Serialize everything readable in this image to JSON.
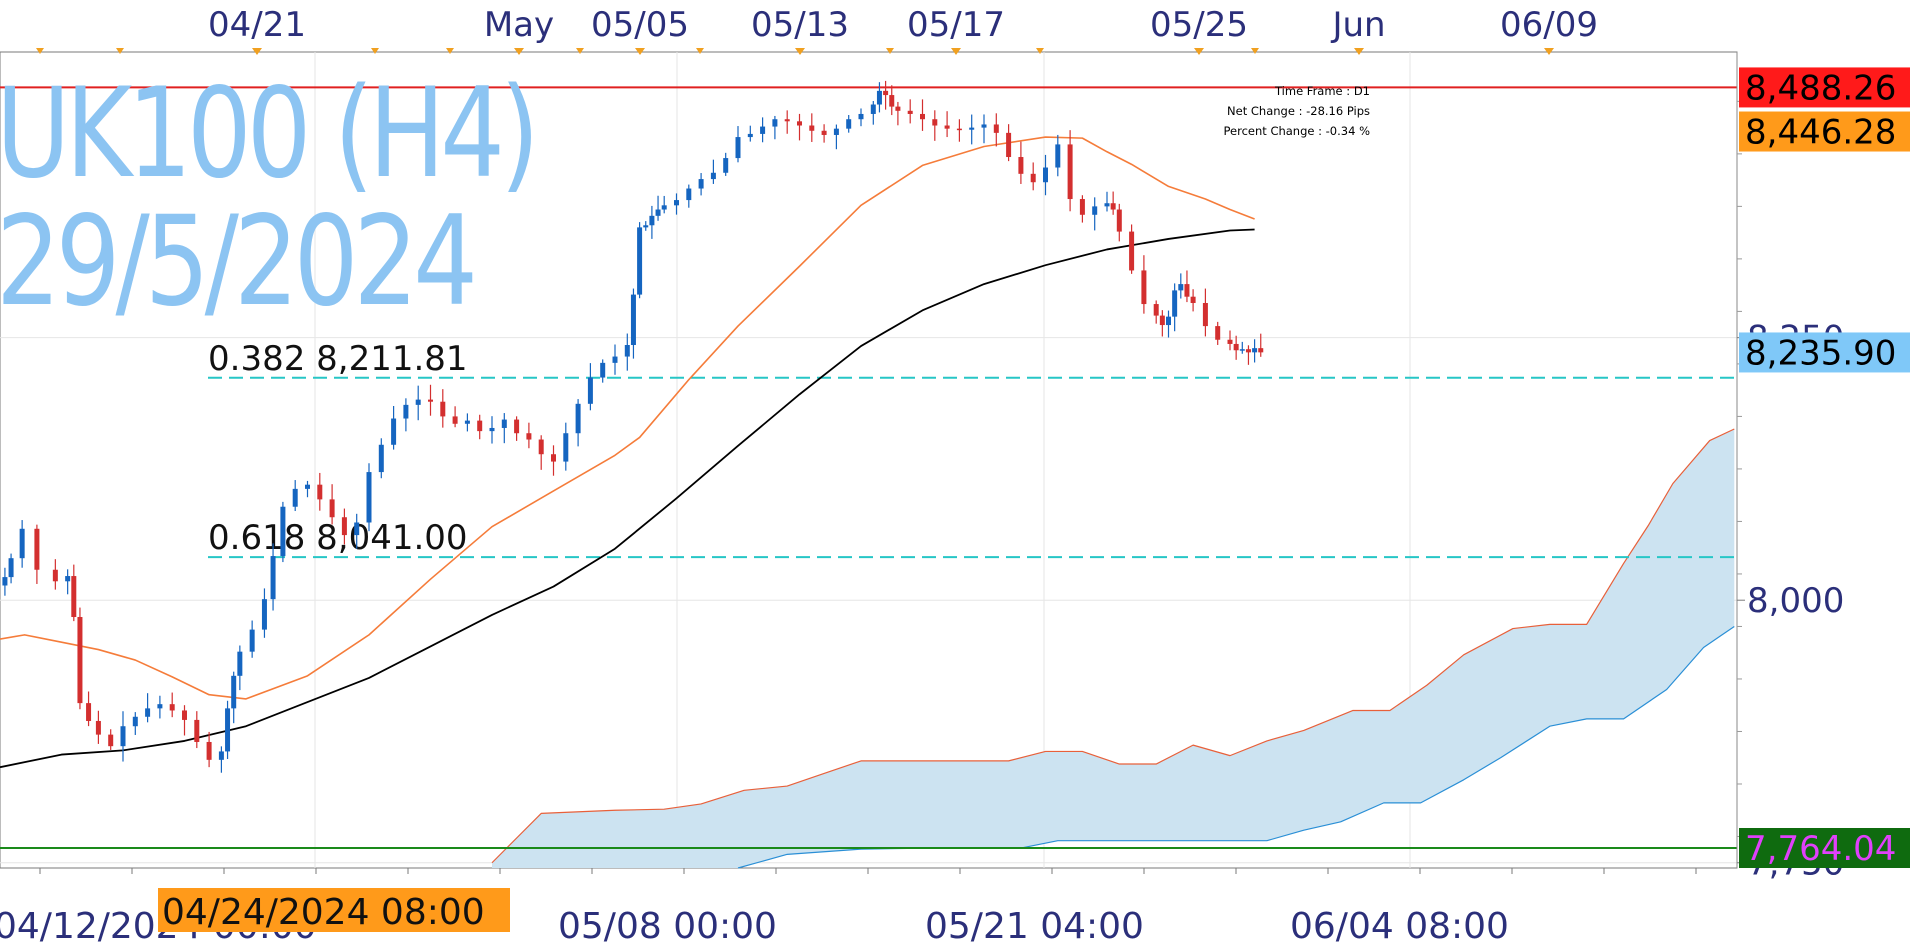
{
  "watermark": {
    "symbol": "UK100 (H4)",
    "date": "29/5/2024"
  },
  "info": {
    "timeframe": "Time Frame : D1",
    "net_change": "Net Change : -28.16 Pips",
    "percent_change": "Percent Change : -0.34 %"
  },
  "colors": {
    "bull_candle": "#1565c0",
    "bear_candle": "#d32f2f",
    "ema_fast": "#f57c3a",
    "ma_slow": "#000000",
    "fib_line": "#26c6c6",
    "cloud_fill": "#cce3f1",
    "cloud_upper": "#e8603a",
    "cloud_lower": "#2a8fd6",
    "resistance": "#e02020",
    "support": "#1a8a1a"
  },
  "chart_data": {
    "type": "line",
    "title": "UK100 (H4)",
    "subtitle": "29/5/2024",
    "top_axis_labels": [
      "04/21",
      "May",
      "05/05",
      "05/13",
      "05/17",
      "05/25",
      "Jun",
      "06/09"
    ],
    "bottom_axis_labels": [
      "04/12/2024 00:00",
      "05/08 00:00",
      "05/21 04:00",
      "06/04 08:00"
    ],
    "crosshair_time": "04/24/2024 08:00",
    "y_ticks": [
      {
        "value": 8250,
        "label": "8,250"
      },
      {
        "value": 8000,
        "label": "8,000"
      },
      {
        "value": 7750,
        "label": "7,750"
      }
    ],
    "ylim": [
      7745,
      8522
    ],
    "price_tags": [
      {
        "value": 8488.26,
        "label": "8,488.26",
        "bg": "#ff1a1a",
        "fg": "#000000"
      },
      {
        "value": 8446.28,
        "label": "8,446.28",
        "bg": "#ff9a1a",
        "fg": "#000000"
      },
      {
        "value": 8235.9,
        "label": "8,235.90",
        "bg": "#7fc8f8",
        "fg": "#000000"
      },
      {
        "value": 7764.04,
        "label": "7,764.04",
        "bg": "#0f6b0f",
        "fg": "#e040fb"
      }
    ],
    "horizontal_levels": [
      {
        "name": "resistance",
        "value": 8488.26
      },
      {
        "name": "support",
        "value": 7764.04
      }
    ],
    "fibonacci_levels": [
      {
        "label": "0.382 8,211.81",
        "value": 8211.81
      },
      {
        "label": "0.618 8,041.00",
        "value": 8041.0
      }
    ],
    "series": [
      {
        "name": "price",
        "x": [
          0,
          4,
          9,
          18,
          30,
          45,
          55,
          60,
          65,
          72,
          80,
          90,
          100,
          110,
          120,
          130,
          140,
          150,
          160,
          170,
          180,
          185,
          190,
          195,
          205,
          215,
          222,
          230,
          240,
          250,
          260,
          270,
          280,
          290,
          300,
          310,
          320,
          330,
          340,
          350,
          360,
          370,
          380,
          390,
          400,
          410,
          420,
          430,
          440,
          450,
          460,
          470,
          480,
          490,
          500,
          510,
          515,
          520,
          525,
          530,
          535,
          540,
          550,
          560,
          570,
          580,
          590,
          600,
          610,
          620,
          630,
          640,
          650,
          660,
          670,
          680,
          690,
          700,
          710,
          715,
          720,
          725,
          730,
          740,
          750,
          760,
          770,
          780,
          790,
          800,
          810,
          820,
          830,
          840,
          850,
          860,
          870,
          880,
          890,
          900,
          905,
          910,
          920,
          930,
          940,
          945,
          950,
          955,
          960,
          965,
          970,
          980,
          990,
          1000,
          1005,
          1010,
          1015,
          1020,
          1025
        ],
        "y": [
          8014,
          8022,
          8040,
          8068,
          8029,
          8018,
          8023,
          7984,
          7902,
          7885,
          7872,
          7861,
          7880,
          7889,
          7897,
          7901,
          7895,
          7886,
          7865,
          7848,
          7856,
          7897,
          7928,
          7951,
          7972,
          8001,
          8042,
          8089,
          8106,
          8110,
          8096,
          8079,
          8062,
          8074,
          8122,
          8148,
          8173,
          8186,
          8191,
          8189,
          8175,
          8168,
          8171,
          8161,
          8164,
          8172,
          8159,
          8153,
          8139,
          8132,
          8159,
          8187,
          8212,
          8226,
          8232,
          8243,
          8291,
          8355,
          8357,
          8366,
          8372,
          8376,
          8381,
          8392,
          8401,
          8407,
          8421,
          8441,
          8444,
          8451,
          8458,
          8456,
          8452,
          8447,
          8443,
          8449,
          8458,
          8463,
          8472,
          8485,
          8481,
          8470,
          8466,
          8463,
          8458,
          8452,
          8449,
          8448,
          8450,
          8453,
          8445,
          8422,
          8406,
          8398,
          8412,
          8434,
          8382,
          8367,
          8375,
          8378,
          8372,
          8351,
          8314,
          8282,
          8271,
          8262,
          8270,
          8295,
          8301,
          8289,
          8283,
          8261,
          8248,
          8244,
          8238,
          8239,
          8236,
          8240,
          8236
        ]
      },
      {
        "name": "ema_fast",
        "x": [
          0,
          20,
          50,
          80,
          110,
          140,
          170,
          200,
          250,
          300,
          350,
          400,
          450,
          500,
          520,
          560,
          600,
          650,
          700,
          750,
          800,
          850,
          880,
          900,
          920,
          950,
          980,
          1000,
          1020
        ],
        "y": [
          7963,
          7967,
          7960,
          7953,
          7943,
          7927,
          7910,
          7906,
          7928,
          7967,
          8020,
          8070,
          8104,
          8138,
          8155,
          8210,
          8261,
          8318,
          8376,
          8414,
          8432,
          8441,
          8440,
          8427,
          8415,
          8394,
          8382,
          8372,
          8363
        ]
      },
      {
        "name": "ma_slow",
        "x": [
          0,
          50,
          100,
          150,
          200,
          250,
          300,
          350,
          400,
          450,
          500,
          550,
          600,
          650,
          700,
          750,
          800,
          850,
          900,
          950,
          1000,
          1020
        ],
        "y": [
          7841,
          7853,
          7857,
          7866,
          7880,
          7903,
          7926,
          7956,
          7986,
          8013,
          8049,
          8097,
          8147,
          8196,
          8242,
          8276,
          8301,
          8319,
          8334,
          8344,
          8352,
          8353
        ]
      },
      {
        "name": "cloud_upper",
        "x": [
          400,
          440,
          500,
          540,
          570,
          605,
          640,
          670,
          700,
          730,
          760,
          790,
          820,
          850,
          880,
          910,
          940,
          970,
          1000,
          1030,
          1060,
          1100,
          1130,
          1160,
          1190,
          1230,
          1260,
          1290,
          1320,
          1340,
          1360,
          1390,
          1410
        ],
        "y": [
          7750,
          7797,
          7800,
          7801,
          7806,
          7819,
          7823,
          7835,
          7847,
          7847,
          7847,
          7847,
          7847,
          7856,
          7856,
          7844,
          7844,
          7862,
          7852,
          7866,
          7876,
          7895,
          7895,
          7919,
          7948,
          7973,
          7977,
          7977,
          8035,
          8071,
          8111,
          8152,
          8163
        ]
      },
      {
        "name": "cloud_lower",
        "x": [
          600,
          640,
          700,
          760,
          800,
          830,
          860,
          900,
          950,
          1000,
          1030,
          1060,
          1090,
          1125,
          1155,
          1190,
          1220,
          1260,
          1290,
          1320,
          1355,
          1385,
          1410
        ],
        "y": [
          7745,
          7758,
          7763,
          7764,
          7764,
          7764,
          7771,
          7771,
          7771,
          7771,
          7771,
          7781,
          7789,
          7807,
          7807,
          7829,
          7850,
          7880,
          7887,
          7887,
          7915,
          7955,
          7975
        ]
      }
    ]
  }
}
